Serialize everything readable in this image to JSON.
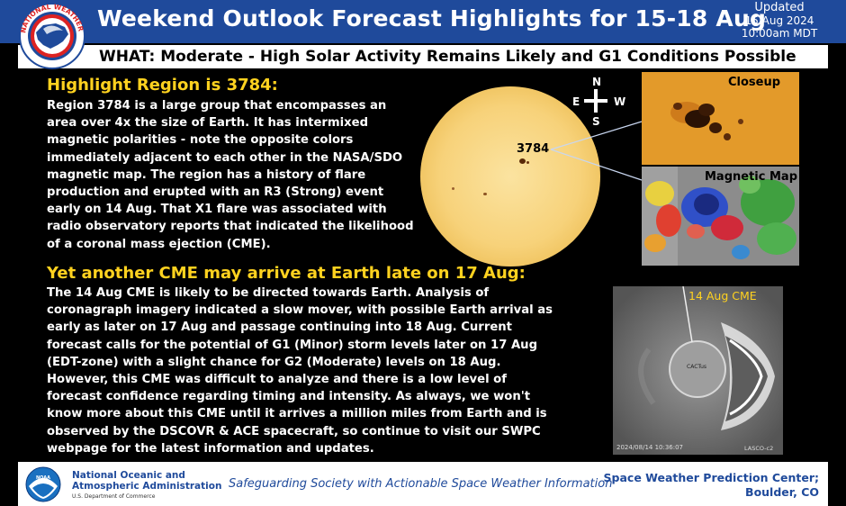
{
  "header": {
    "title": "Weekend Outlook Forecast Highlights for 15-18 Aug",
    "updated_label": "Updated",
    "updated_date": "15 Aug 2024",
    "updated_time": "10:00am MDT",
    "logo_text": "NATIONAL WEATHER SERVICE"
  },
  "what": {
    "text": "WHAT:  Moderate - High Solar Activity Remains Likely and G1 Conditions Possible"
  },
  "region": {
    "heading": "Highlight Region is 3784:",
    "lines": [
      "Region 3784 is a large group that encompasses an",
      "area over 4x the size of Earth. It has intermixed",
      "magnetic polarities - note the opposite colors",
      "immediately adjacent to each other in the NASA/SDO",
      "magnetic map. The region has a history of flare",
      "production and erupted with an R3 (Strong) event",
      "early on 14 Aug. That X1 flare was associated with",
      "radio observatory reports that indicated the likelihood",
      "of a coronal mass ejection (CME)."
    ]
  },
  "sun_image": {
    "region_label": "3784",
    "compass": {
      "n": "N",
      "s": "S",
      "e": "E",
      "w": "W"
    }
  },
  "closeup": {
    "label": "Closeup"
  },
  "magnetic_map": {
    "label": "Magnetic Map"
  },
  "cme_section": {
    "heading": "Yet another CME may arrive at Earth late on 17 Aug:",
    "lines": [
      "The 14 Aug CME is likely to be directed towards Earth. Analysis of",
      "coronagraph imagery indicated a slow mover, with possible Earth arrival as",
      "early as later on 17 Aug and passage continuing into 18 Aug. Current",
      "forecast calls for the potential of G1 (Minor) storm levels later on 17 Aug",
      "(EDT-zone) with a slight chance for G2 (Moderate) levels on 18 Aug.",
      "However, this CME was difficult to analyze and there is a low level of",
      "forecast confidence regarding timing and intensity. As always, we won't",
      "know more about this CME until it arrives a million miles from Earth and is",
      "observed by the DSCOVR & ACE spacecraft, so continue to visit our SWPC",
      "webpage for the latest information and updates."
    ]
  },
  "cme_image": {
    "label": "14 Aug CME",
    "center_label": "CACTus",
    "timestamp": "2024/08/14 10:36:07",
    "instrument": "LASCO-c2"
  },
  "footer": {
    "noaa_name_line1": "National Oceanic and",
    "noaa_name_line2": "Atmospheric Administration",
    "noaa_dept": "U.S. Department of Commerce",
    "noaa_logo_text": "NOAA",
    "tagline": "Safeguarding Society with Actionable Space Weather Information",
    "swpc_line1": "Space Weather Prediction Center;",
    "swpc_line2": "Boulder, CO"
  }
}
